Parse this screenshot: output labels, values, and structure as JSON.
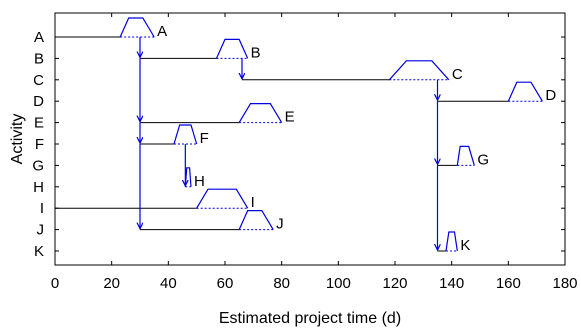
{
  "chart_data": {
    "type": "gantt-pert",
    "xlabel": "Estimated project time (d)",
    "ylabel": "Activity",
    "xlim": [
      0,
      180
    ],
    "xticks": [
      0,
      20,
      40,
      60,
      80,
      100,
      120,
      140,
      160,
      180
    ],
    "grid": false,
    "colors": {
      "lines": "#000000",
      "distribution": "#0000dd",
      "arrows": "#0000dd"
    },
    "activities": [
      {
        "id": "A",
        "start": 0,
        "dist": [
          23,
          26,
          31,
          35
        ]
      },
      {
        "id": "B",
        "start": 30,
        "dist": [
          57,
          60,
          65,
          68
        ]
      },
      {
        "id": "C",
        "start": 66,
        "dist": [
          118,
          124,
          133,
          139
        ]
      },
      {
        "id": "D",
        "start": 135,
        "dist": [
          160,
          163,
          168,
          172
        ]
      },
      {
        "id": "E",
        "start": 30,
        "dist": [
          65,
          69,
          76,
          80
        ]
      },
      {
        "id": "F",
        "start": 30,
        "dist": [
          42,
          44,
          48,
          50
        ]
      },
      {
        "id": "G",
        "start": 135,
        "dist": [
          142,
          143,
          146,
          148
        ]
      },
      {
        "id": "H",
        "start": 46,
        "dist": [
          46,
          46.5,
          47.5,
          48
        ]
      },
      {
        "id": "I",
        "start": 0,
        "dist": [
          50,
          54,
          64,
          68
        ]
      },
      {
        "id": "J",
        "start": 30,
        "dist": [
          65,
          68,
          73,
          77
        ]
      },
      {
        "id": "K",
        "start": 135,
        "dist": [
          138,
          139,
          141,
          142
        ]
      }
    ],
    "arrows": [
      {
        "x": 30,
        "from": "A",
        "to": "B"
      },
      {
        "x": 30,
        "from": "B",
        "to": "E"
      },
      {
        "x": 30,
        "from": "E",
        "to": "F"
      },
      {
        "x": 30,
        "from": "F",
        "to": "J"
      },
      {
        "x": 66,
        "from": "B",
        "to": "C"
      },
      {
        "x": 135,
        "from": "C",
        "to": "D"
      },
      {
        "x": 135,
        "from": "D",
        "to": "G"
      },
      {
        "x": 135,
        "from": "G",
        "to": "K"
      },
      {
        "x": 46,
        "from": "F",
        "to": "H"
      }
    ]
  }
}
